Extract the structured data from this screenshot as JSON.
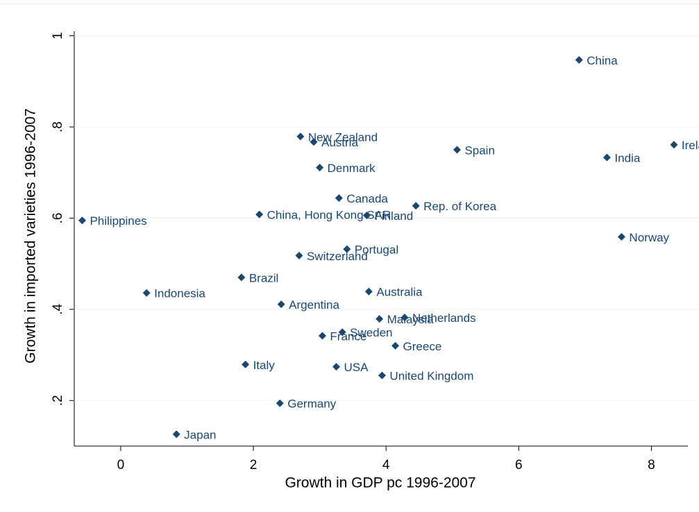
{
  "chart_data": {
    "type": "scatter",
    "xlabel": "Growth in GDP pc 1996-2007",
    "ylabel": "Growth in imported varieties 1996-2007",
    "xlim": [
      -0.7,
      8.55
    ],
    "ylim": [
      0.1,
      1.01
    ],
    "xticks": [
      0,
      2,
      4,
      6,
      8
    ],
    "yticks": [
      {
        "value": 0.2,
        "label": ".2"
      },
      {
        "value": 0.4,
        "label": ".4"
      },
      {
        "value": 0.6,
        "label": ".6"
      },
      {
        "value": 0.8,
        "label": ".8"
      },
      1
    ],
    "grid": true,
    "color": "#1a476f",
    "labels": [
      "China",
      "Ireland",
      "India",
      "Spain",
      "Norway",
      "New Zealand",
      "Austria",
      "Denmark",
      "Canada",
      "Rep. of Korea",
      "Finland",
      "China, Hong Kong SAR",
      "Philippines",
      "Portugal",
      "Switzerland",
      "Brazil",
      "Indonesia",
      "Australia",
      "Argentina",
      "Malaysia",
      "Netherlands",
      "Sweden",
      "France",
      "Greece",
      "Italy",
      "USA",
      "United Kingdom",
      "Germany",
      "Japan"
    ],
    "x": [
      6.91,
      8.34,
      7.33,
      5.07,
      7.55,
      2.71,
      2.91,
      3.0,
      3.29,
      4.45,
      3.71,
      2.09,
      -0.58,
      3.41,
      2.69,
      1.82,
      0.39,
      3.74,
      2.42,
      3.9,
      4.28,
      3.34,
      3.04,
      4.14,
      1.88,
      3.25,
      3.94,
      2.4,
      0.84
    ],
    "values": [
      0.947,
      0.761,
      0.733,
      0.75,
      0.559,
      0.779,
      0.767,
      0.711,
      0.644,
      0.627,
      0.606,
      0.608,
      0.595,
      0.532,
      0.518,
      0.47,
      0.436,
      0.439,
      0.411,
      0.379,
      0.382,
      0.35,
      0.342,
      0.32,
      0.279,
      0.274,
      0.255,
      0.194,
      0.126
    ]
  }
}
